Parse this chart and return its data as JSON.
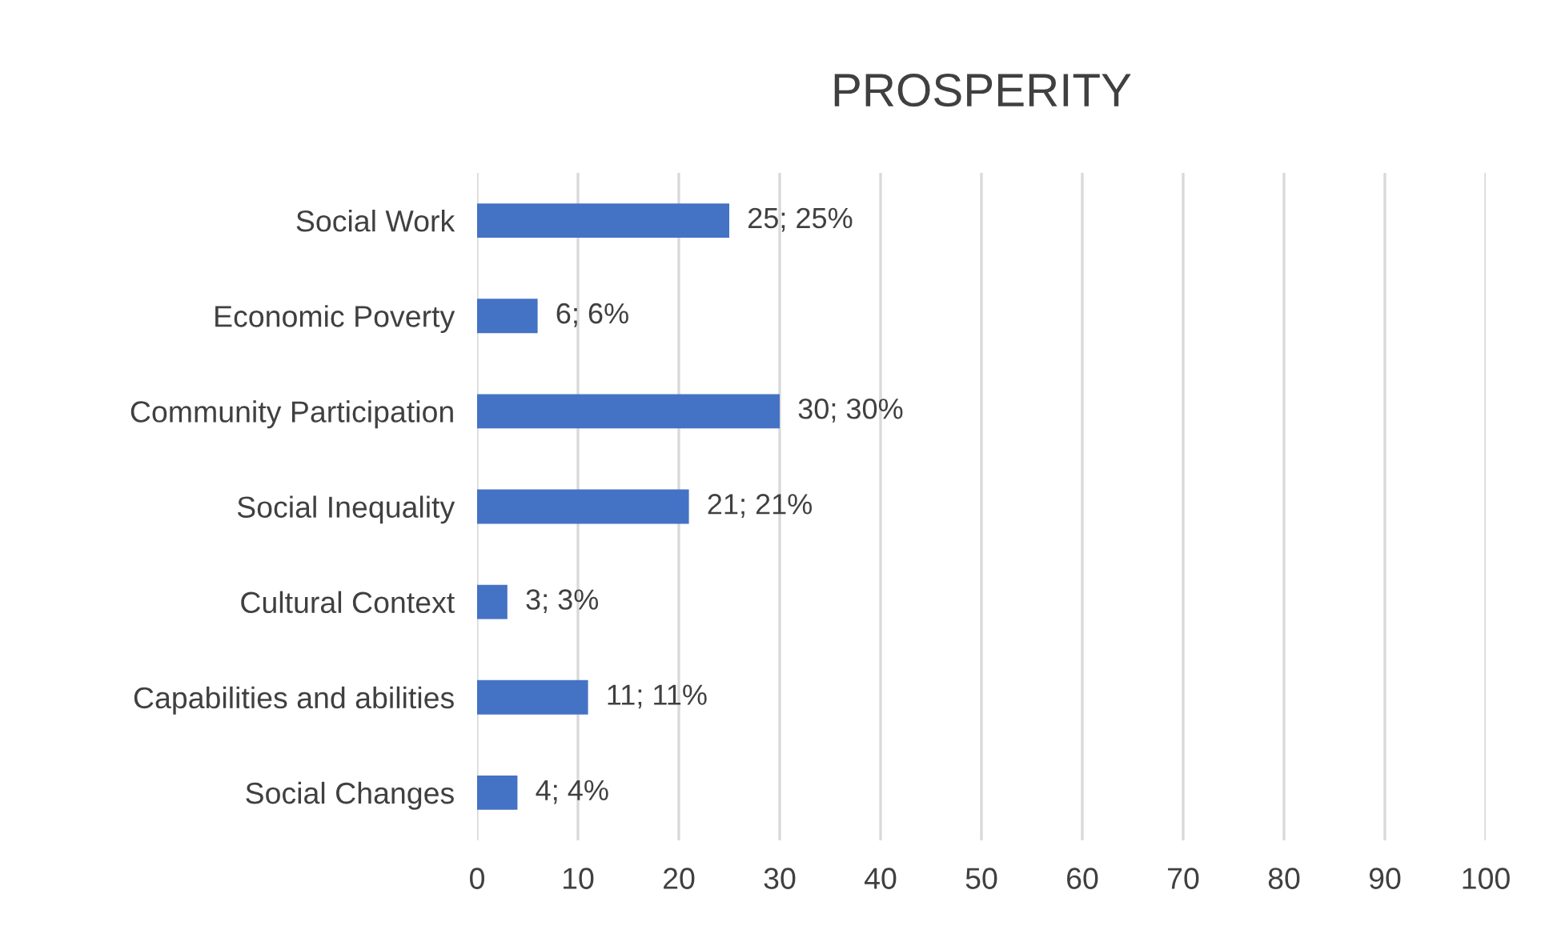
{
  "chart_data": {
    "type": "bar",
    "orientation": "horizontal",
    "title": "PROSPERITY",
    "categories": [
      "Social Work",
      "Economic Poverty",
      "Community Participation",
      "Social Inequality",
      "Cultural Context",
      "Capabilities and abilities",
      "Social Changes"
    ],
    "values": [
      25,
      6,
      30,
      21,
      3,
      11,
      4
    ],
    "value_labels": [
      "25; 25%",
      "6; 6%",
      "30; 30%",
      "21; 21%",
      "3; 3%",
      "11; 11%",
      "4; 4%"
    ],
    "color": "#4472c4",
    "xlim": [
      0,
      100
    ],
    "xticks": [
      0,
      10,
      20,
      30,
      40,
      50,
      60,
      70,
      80,
      90,
      100
    ],
    "grid": "x",
    "legend": false
  }
}
